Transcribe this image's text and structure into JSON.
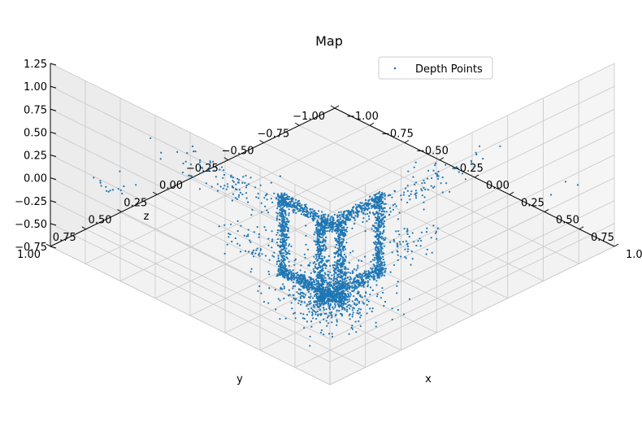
{
  "chart_data": {
    "type": "scatter",
    "projection": "3d",
    "title": "Map",
    "xlabel": "x",
    "ylabel": "y",
    "zlabel": "z",
    "xlim": [
      -1.0,
      1.0
    ],
    "ylim": [
      -1.0,
      1.0
    ],
    "zlim": [
      -0.75,
      1.25
    ],
    "xticks": [
      "−1.00",
      "−0.75",
      "−0.50",
      "−0.25",
      "0.00",
      "0.25",
      "0.50",
      "0.75",
      "1.00"
    ],
    "yticks": [
      "−1.00",
      "−0.75",
      "−0.50",
      "−0.25",
      "0.00",
      "0.25",
      "0.50",
      "0.75",
      "1.00"
    ],
    "zticks": [
      "−0.75",
      "−0.50",
      "−0.25",
      "0.00",
      "0.25",
      "0.50",
      "0.75",
      "1.00",
      "1.25"
    ],
    "grid": true,
    "legend_position": "upper-right",
    "series": [
      {
        "name": "Depth Points",
        "color": "#1f77b4",
        "clusters": [
          {
            "shape": "frame",
            "fixed": "y",
            "fixed_value": 0.72,
            "a_range": [
              0.35,
              0.82
            ],
            "z_range": [
              -0.25,
              0.65
            ],
            "thickness": 0.06,
            "count": 1300
          },
          {
            "shape": "frame",
            "fixed": "x",
            "fixed_value": 0.72,
            "a_range": [
              0.35,
              0.82
            ],
            "z_range": [
              -0.25,
              0.65
            ],
            "thickness": 0.06,
            "count": 1300
          },
          {
            "shape": "blob",
            "center": [
              0.85,
              0.85,
              0.05
            ],
            "spread": [
              0.12,
              0.12,
              0.12
            ],
            "count": 700
          },
          {
            "shape": "blob",
            "center": [
              0.95,
              0.35,
              0.85
            ],
            "spread": [
              0.05,
              0.25,
              0.06
            ],
            "count": 120
          },
          {
            "shape": "blob",
            "center": [
              0.3,
              0.95,
              0.85
            ],
            "spread": [
              0.25,
              0.05,
              0.06
            ],
            "count": 120
          },
          {
            "shape": "blob",
            "center": [
              0.2,
              0.75,
              0.0
            ],
            "spread": [
              0.1,
              0.05,
              0.1
            ],
            "count": 60
          },
          {
            "shape": "blob",
            "center": [
              0.75,
              0.2,
              0.0
            ],
            "spread": [
              0.05,
              0.1,
              0.1
            ],
            "count": 60
          },
          {
            "shape": "blob",
            "center": [
              -0.95,
              0.6,
              -0.35
            ],
            "spread": [
              0.04,
              0.05,
              0.05
            ],
            "count": 15
          },
          {
            "shape": "blob",
            "center": [
              0.65,
              -0.95,
              -0.35
            ],
            "spread": [
              0.05,
              0.04,
              0.05
            ],
            "count": 3
          }
        ]
      }
    ]
  }
}
